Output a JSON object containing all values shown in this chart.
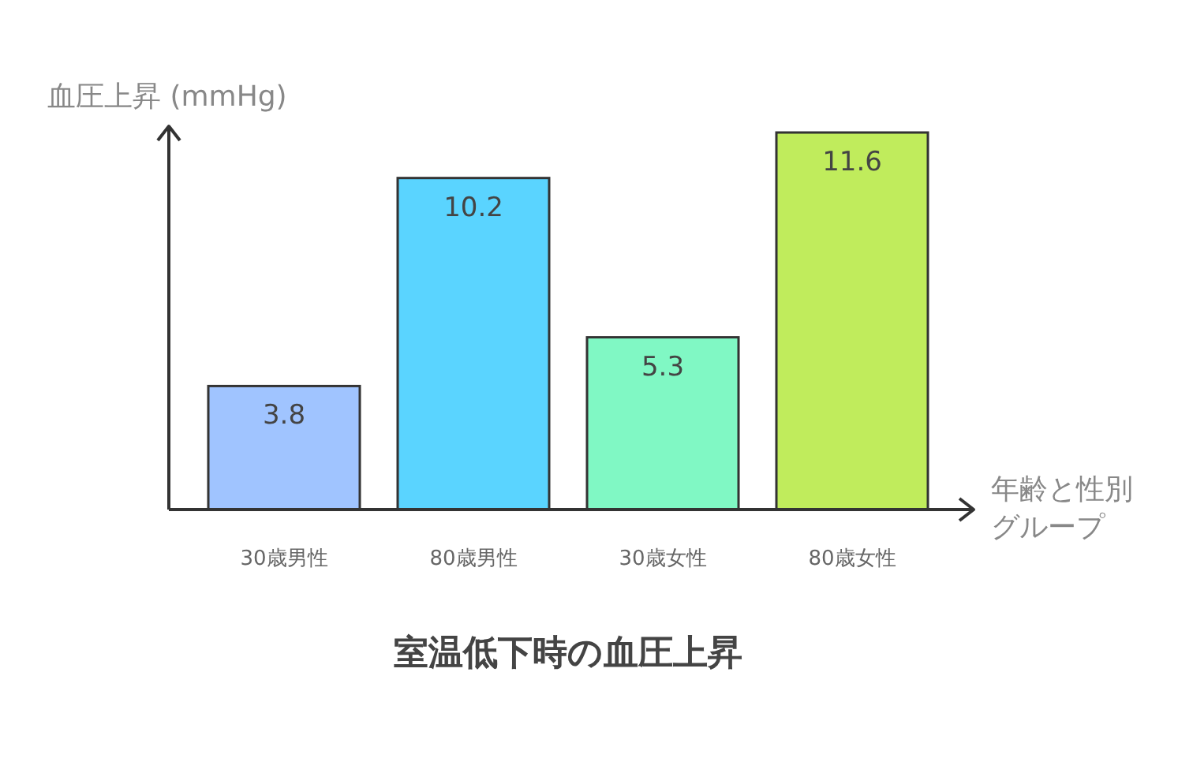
{
  "chart_data": {
    "type": "bar",
    "title": "室温低下時の血圧上昇",
    "ylabel": "血圧上昇 (mmHg)",
    "xlabel": "年齢と性別グループ",
    "categories": [
      "30歳男性",
      "80歳男性",
      "30歳女性",
      "80歳女性"
    ],
    "values": [
      3.8,
      10.2,
      5.3,
      11.6
    ],
    "colors": [
      "#a0c4ff",
      "#5ad4ff",
      "#80f8c4",
      "#c0ec5c"
    ],
    "data_labels": true
  }
}
